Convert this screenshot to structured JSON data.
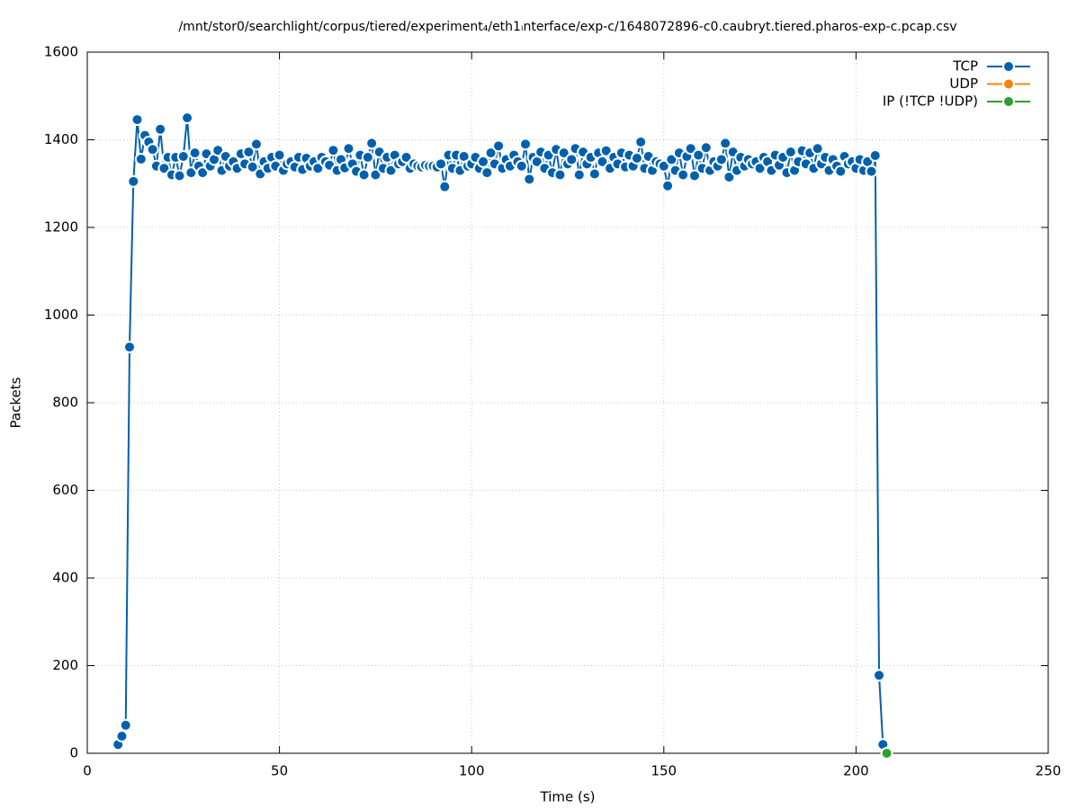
{
  "chart_data": {
    "type": "line",
    "title": "/mnt/stor0/searchlight/corpus/tiered/experiment₄/eth1ᵢnterface/exp-c/1648072896-c0.caubryt.tiered.pharos-exp-c.pcap.csv",
    "x_label": "Time (s)",
    "y_label": "Packets",
    "xlim": [
      0,
      250
    ],
    "xticks": [
      0,
      50,
      100,
      150,
      200,
      250
    ],
    "ylim": [
      0,
      1600
    ],
    "yticks": [
      0,
      200,
      400,
      600,
      800,
      1000,
      1200,
      1400,
      1600
    ],
    "grid": true,
    "legend": "upper right",
    "series": [
      {
        "name": "TCP",
        "color": "#0060ad",
        "x": [
          8,
          9,
          10,
          11,
          12,
          13,
          14,
          15,
          16,
          17,
          18,
          19,
          20,
          21,
          22,
          23,
          24,
          25,
          26,
          27,
          28,
          29,
          30,
          31,
          32,
          33,
          34,
          35,
          36,
          37,
          38,
          39,
          40,
          41,
          42,
          43,
          44,
          45,
          46,
          47,
          48,
          49,
          50,
          51,
          52,
          53,
          54,
          55,
          56,
          57,
          58,
          59,
          60,
          61,
          62,
          63,
          64,
          65,
          66,
          67,
          68,
          69,
          70,
          71,
          72,
          73,
          74,
          75,
          76,
          77,
          78,
          79,
          80,
          81,
          82,
          83,
          84,
          85,
          86,
          87,
          88,
          89,
          90,
          91,
          92,
          93,
          94,
          95,
          96,
          97,
          98,
          99,
          100,
          101,
          102,
          103,
          104,
          105,
          106,
          107,
          108,
          109,
          110,
          111,
          112,
          113,
          114,
          115,
          116,
          117,
          118,
          119,
          120,
          121,
          122,
          123,
          124,
          125,
          126,
          127,
          128,
          129,
          130,
          131,
          132,
          133,
          134,
          135,
          136,
          137,
          138,
          139,
          140,
          141,
          142,
          143,
          144,
          145,
          146,
          147,
          148,
          149,
          150,
          151,
          152,
          153,
          154,
          155,
          156,
          157,
          158,
          159,
          160,
          161,
          162,
          163,
          164,
          165,
          166,
          167,
          168,
          169,
          170,
          171,
          172,
          173,
          174,
          175,
          176,
          177,
          178,
          179,
          180,
          181,
          182,
          183,
          184,
          185,
          186,
          187,
          188,
          189,
          190,
          191,
          192,
          193,
          194,
          195,
          196,
          197,
          198,
          199,
          200,
          201,
          202,
          203,
          204,
          205,
          206,
          207
        ],
        "values": [
          20,
          39,
          64,
          927,
          1305,
          1446,
          1356,
          1410,
          1395,
          1378,
          1340,
          1424,
          1335,
          1360,
          1320,
          1360,
          1318,
          1362,
          1450,
          1325,
          1370,
          1340,
          1325,
          1368,
          1340,
          1355,
          1376,
          1330,
          1362,
          1340,
          1350,
          1335,
          1368,
          1345,
          1372,
          1338,
          1390,
          1322,
          1350,
          1335,
          1360,
          1340,
          1365,
          1330,
          1345,
          1350,
          1338,
          1360,
          1332,
          1358,
          1340,
          1350,
          1335,
          1360,
          1350,
          1342,
          1376,
          1330,
          1355,
          1336,
          1380,
          1345,
          1328,
          1365,
          1320,
          1360,
          1392,
          1320,
          1372,
          1335,
          1360,
          1330,
          1365,
          1345,
          1350,
          1360,
          1335,
          1345,
          1340,
          1338,
          1342,
          1340,
          1340,
          1338,
          1345,
          1293,
          1365,
          1335,
          1365,
          1330,
          1362,
          1340,
          1345,
          1360,
          1335,
          1350,
          1325,
          1370,
          1345,
          1386,
          1335,
          1355,
          1340,
          1365,
          1350,
          1340,
          1390,
          1310,
          1360,
          1350,
          1372,
          1335,
          1365,
          1325,
          1378,
          1320,
          1370,
          1345,
          1355,
          1380,
          1320,
          1372,
          1345,
          1360,
          1322,
          1370,
          1350,
          1375,
          1335,
          1360,
          1345,
          1370,
          1338,
          1365,
          1340,
          1358,
          1395,
          1335,
          1362,
          1330,
          1350,
          1345,
          1340,
          1295,
          1355,
          1330,
          1370,
          1320,
          1362,
          1380,
          1318,
          1365,
          1335,
          1382,
          1330,
          1350,
          1340,
          1355,
          1392,
          1315,
          1372,
          1330,
          1360,
          1340,
          1355,
          1345,
          1350,
          1335,
          1360,
          1350,
          1330,
          1365,
          1342,
          1360,
          1325,
          1372,
          1330,
          1350,
          1375,
          1345,
          1370,
          1335,
          1380,
          1345,
          1360,
          1330,
          1355,
          1340,
          1328,
          1362,
          1345,
          1350,
          1335,
          1355,
          1330,
          1350,
          1328,
          1364,
          178,
          20
        ]
      },
      {
        "name": "UDP",
        "color": "#ff7f0e",
        "x": [],
        "values": []
      },
      {
        "name": "IP (!TCP  !UDP)",
        "color": "#2ca02c",
        "x": [
          208
        ],
        "values": [
          0
        ]
      }
    ]
  }
}
